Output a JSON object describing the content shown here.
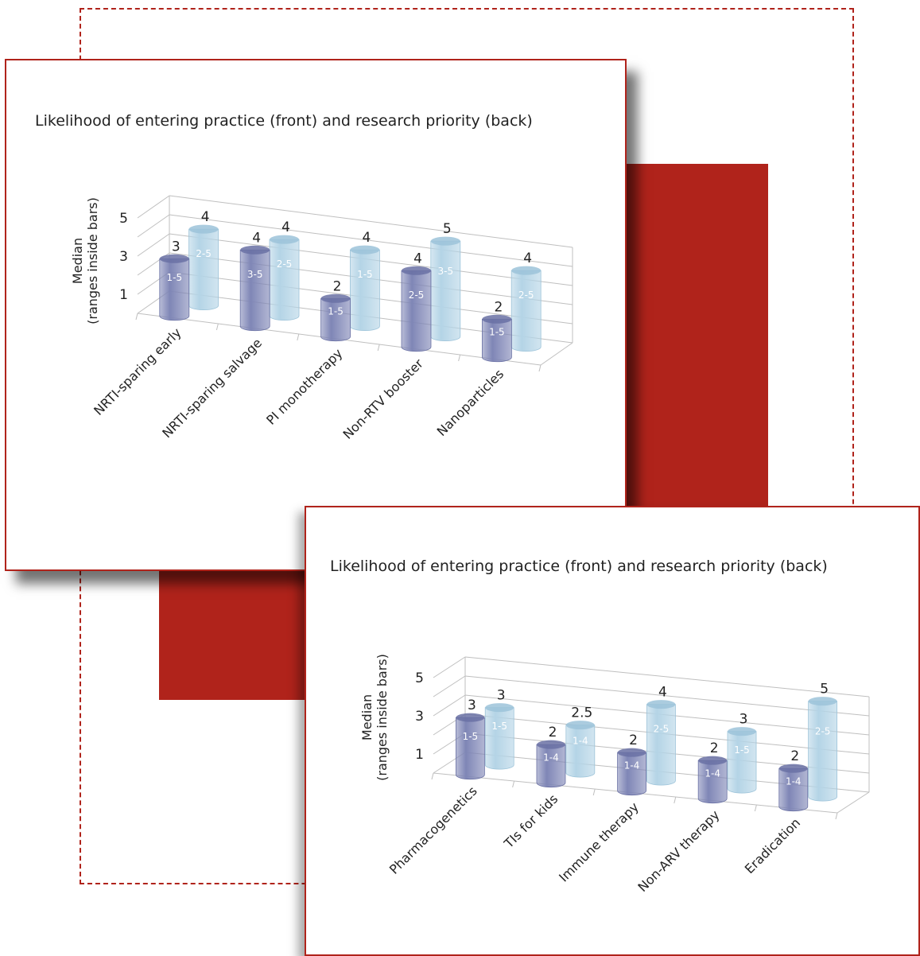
{
  "colors": {
    "frame": "#b0231b",
    "front_bar": "#7f86b6",
    "back_bar": "#b4d4e6",
    "grid": "#bfbfbf"
  },
  "chart_data": [
    {
      "type": "bar",
      "style": "3d-cylinder",
      "title": "Likelihood of entering practice (front) and research priority (back)",
      "ylabel": "Median\n(ranges inside bars)",
      "yticks": [
        1,
        3,
        5
      ],
      "ylim": [
        0,
        5
      ],
      "grid": true,
      "categories": [
        "NRTI-sparing early",
        "NRTI-sparing salvage",
        "PI monotherapy",
        "Non-RTV booster",
        "Nanoparticles"
      ],
      "series": [
        {
          "values": [
            3,
            4,
            2,
            4,
            2
          ],
          "ranges": [
            "1-5",
            "3-5",
            "1-5",
            "2-5",
            "1-5"
          ]
        },
        {
          "values": [
            4,
            4,
            4,
            5,
            4
          ],
          "ranges": [
            "2-5",
            "2-5",
            "1-5",
            "3-5",
            "2-5"
          ]
        }
      ]
    },
    {
      "type": "bar",
      "style": "3d-cylinder",
      "title": "Likelihood of entering practice (front) and research priority (back)",
      "ylabel": "Median\n(ranges inside bars)",
      "yticks": [
        1,
        3,
        5
      ],
      "ylim": [
        0,
        5
      ],
      "grid": true,
      "categories": [
        "Pharmacogenetics",
        "TIs for kids",
        "Immune therapy",
        "Non-ARV therapy",
        "Eradication"
      ],
      "series": [
        {
          "values": [
            3,
            2,
            2,
            2,
            2
          ],
          "ranges": [
            "1-5",
            "1-4",
            "1-4",
            "1-4",
            "1-4"
          ]
        },
        {
          "values": [
            3,
            2.5,
            4,
            3,
            5
          ],
          "ranges": [
            "1-5",
            "1-4",
            "2-5",
            "1-5",
            "2-5"
          ]
        }
      ]
    }
  ]
}
